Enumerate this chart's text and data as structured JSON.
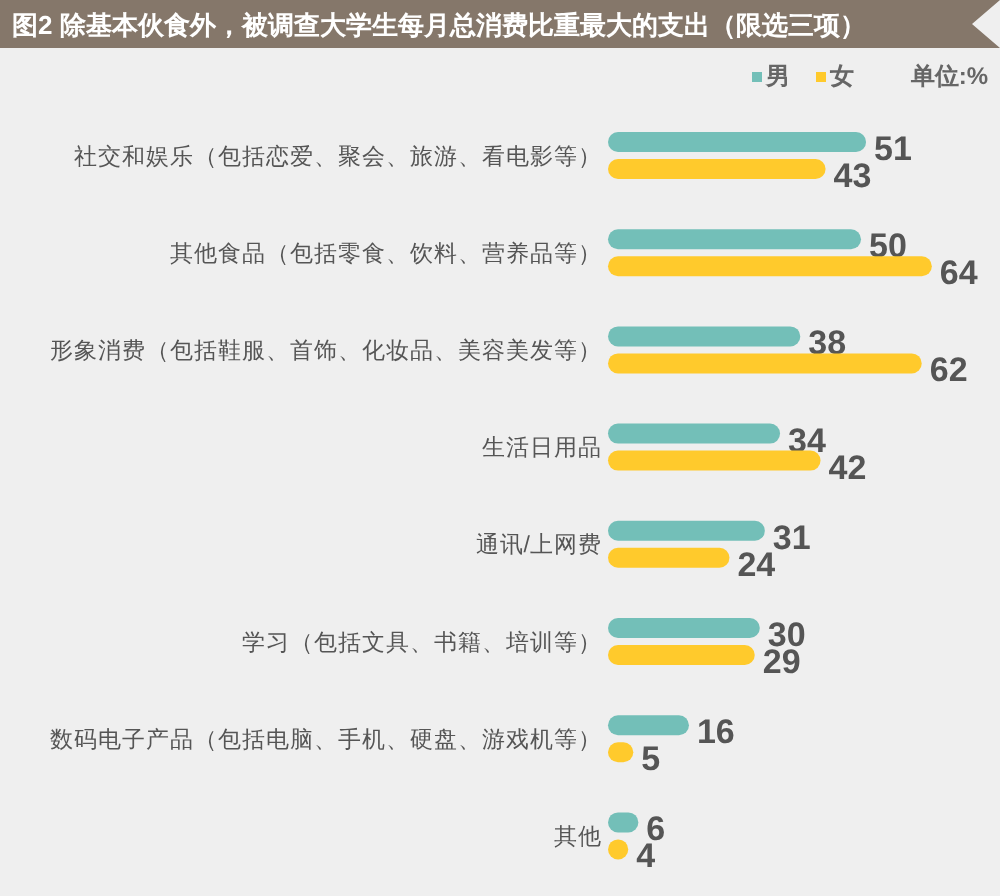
{
  "chart_data": {
    "type": "bar",
    "orientation": "horizontal",
    "title": "图2 除基本伙食外，被调查大学生每月总消费比重最大的支出（限选三项）",
    "annotations": [
      "单位:%"
    ],
    "categories": [
      "社交和娱乐（包括恋爱、聚会、旅游、看电影等）",
      "其他食品（包括零食、饮料、营养品等）",
      "形象消费（包括鞋服、首饰、化妆品、美容美发等）",
      "生活日用品",
      "通讯/上网费",
      "学习（包括文具、书籍、培训等）",
      "数码电子产品（包括电脑、手机、硬盘、游戏机等）",
      "其他"
    ],
    "series": [
      {
        "name": "男",
        "color": "#73bfb8",
        "values": [
          51,
          50,
          38,
          34,
          31,
          30,
          16,
          6
        ]
      },
      {
        "name": "女",
        "color": "#ffca2c",
        "values": [
          43,
          64,
          62,
          42,
          24,
          29,
          5,
          4
        ]
      }
    ],
    "data_labels": true,
    "legend": "top right"
  }
}
